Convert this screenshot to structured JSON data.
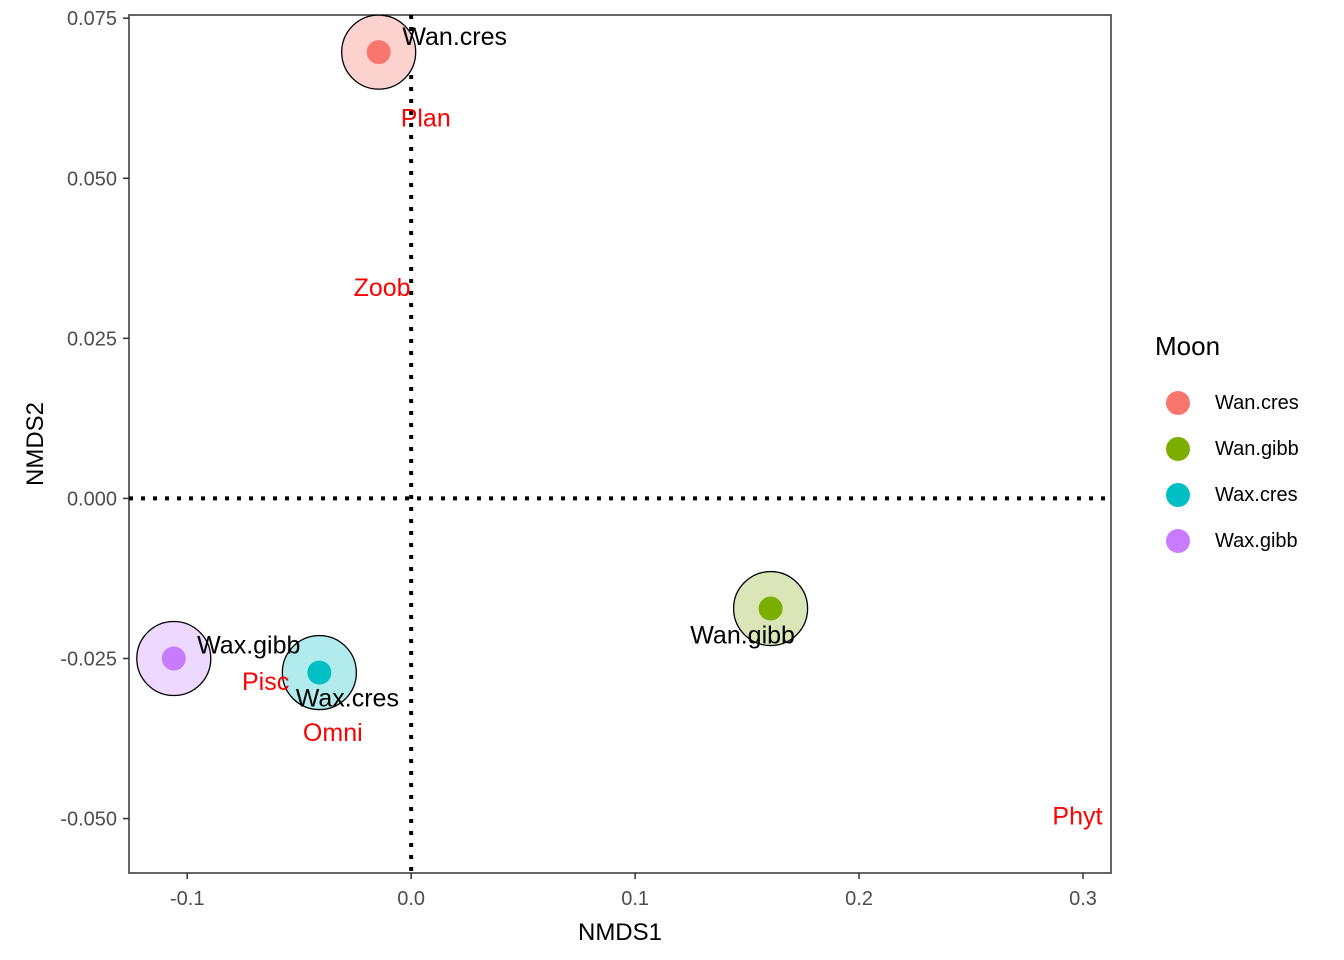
{
  "chart_data": {
    "type": "scatter",
    "xlabel": "NMDS1",
    "ylabel": "NMDS2",
    "xlim": [
      -0.126,
      0.3125
    ],
    "ylim": [
      -0.0585,
      0.0755
    ],
    "xticks": [
      -0.1,
      0.0,
      0.1,
      0.2,
      0.3
    ],
    "xtick_labels": [
      "-0.1",
      "0.0",
      "0.1",
      "0.2",
      "0.3"
    ],
    "yticks": [
      -0.05,
      -0.025,
      0.0,
      0.025,
      0.05,
      0.075
    ],
    "ytick_labels": [
      "-0.050",
      "-0.025",
      "0.000",
      "0.025",
      "0.050",
      "0.075"
    ],
    "reference_lines": {
      "x": 0,
      "y": 0,
      "style": "dotted"
    },
    "grid": false,
    "legend": {
      "title": "Moon",
      "position": "right",
      "entries": [
        {
          "label": "Wan.cres",
          "color": "#F8766D"
        },
        {
          "label": "Wan.gibb",
          "color": "#7CAE00"
        },
        {
          "label": "Wax.cres",
          "color": "#00BFC4"
        },
        {
          "label": "Wax.gibb",
          "color": "#C77CFF"
        }
      ]
    },
    "sites": [
      {
        "label": "Wan.cres",
        "x": -0.0145,
        "y": 0.0697,
        "color": "#F8766D",
        "fill": "#FCD2CF"
      },
      {
        "label": "Wan.gibb",
        "x": 0.1605,
        "y": -0.0172,
        "color": "#7CAE00",
        "fill": "#DAE6B8"
      },
      {
        "label": "Wax.cres",
        "x": -0.041,
        "y": -0.0272,
        "color": "#00BFC4",
        "fill": "#B2EBED"
      },
      {
        "label": "Wax.gibb",
        "x": -0.106,
        "y": -0.025,
        "color": "#C77CFF",
        "fill": "#EDD8FF"
      }
    ],
    "species": [
      {
        "label": "Plan",
        "x": 0.0065,
        "y": 0.0595
      },
      {
        "label": "Zoob",
        "x": -0.013,
        "y": 0.033
      },
      {
        "label": "Pisc",
        "x": -0.065,
        "y": -0.0285
      },
      {
        "label": "Omni",
        "x": -0.035,
        "y": -0.0365
      },
      {
        "label": "Phyt",
        "x": 0.2975,
        "y": -0.0495
      }
    ],
    "species_color": "#FF0000"
  }
}
